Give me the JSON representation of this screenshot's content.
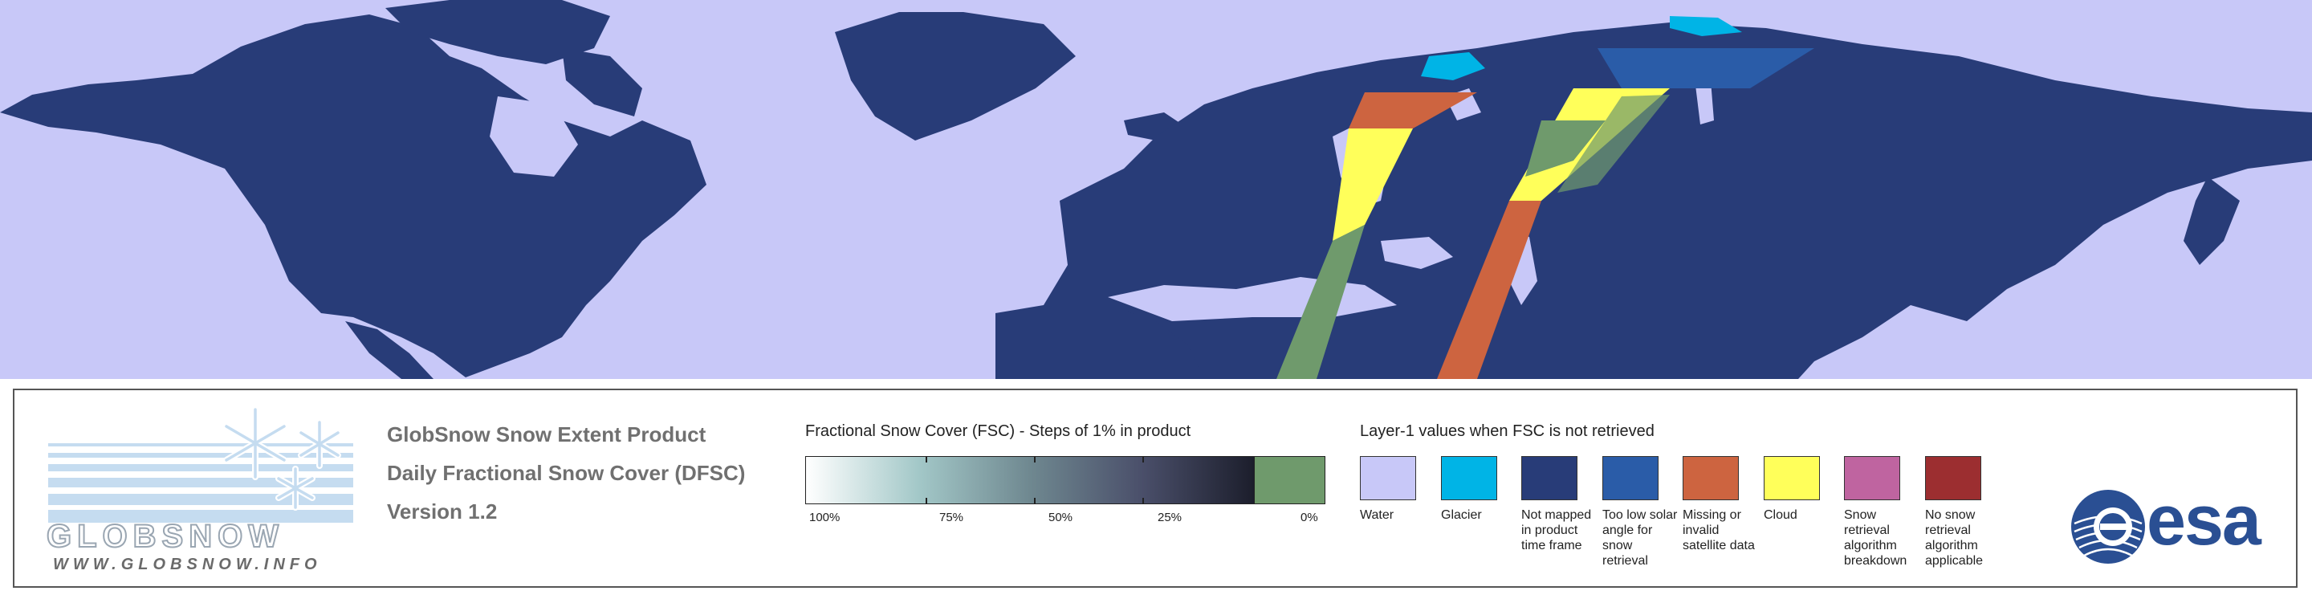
{
  "legend": {
    "logo": {
      "wordmark": "GLOBSNOW",
      "url": "WWW.GLOBSNOW.INFO"
    },
    "product_lines": [
      "GlobSnow Snow Extent Product",
      "Daily Fractional Snow Cover (DFSC)",
      "Version 1.2"
    ],
    "fsc": {
      "header": "Fractional Snow Cover (FSC) - Steps of 1% in product",
      "ticks": [
        "100%",
        "75%",
        "50%",
        "25%",
        "0%"
      ],
      "gradient_colors": [
        "#ffffff",
        "#a3c8c8",
        "#6f8890",
        "#4a4f6a",
        "#1c1e2c"
      ],
      "zero_color": "#6f9a6c"
    },
    "layer1": {
      "header": "Layer-1 values when FSC is not retrieved",
      "classes": [
        {
          "label": "Water",
          "color": "#c8c8f8"
        },
        {
          "label": "Glacier",
          "color": "#00b4e6"
        },
        {
          "label": "Not mapped in product time frame",
          "color": "#283c78"
        },
        {
          "label": "Too low solar angle for snow retrieval",
          "color": "#2a5ca8"
        },
        {
          "label": "Missing or invalid satellite data",
          "color": "#cd6440"
        },
        {
          "label": "Cloud",
          "color": "#ffff5a"
        },
        {
          "label": "Snow retrieval algorithm breakdown",
          "color": "#bf64a0"
        },
        {
          "label": "No snow retrieval algorithm applicable",
          "color": "#9c2e30"
        }
      ]
    },
    "agency_logo": "esa"
  },
  "map": {
    "water_color": "#c8c8f8",
    "land_color": "#283c78"
  }
}
